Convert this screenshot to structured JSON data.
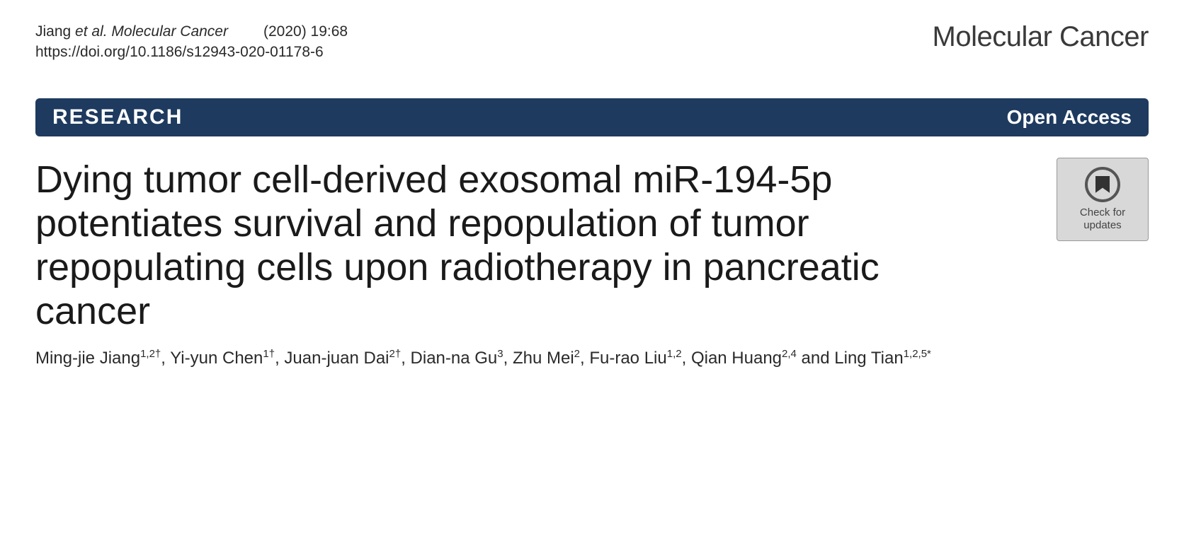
{
  "citation": {
    "authors_short": "Jiang",
    "et_al_text": "et al. Molecular Cancer",
    "year_issue": "(2020) 19:68",
    "doi": "https://doi.org/10.1186/s12943-020-01178-6"
  },
  "journal": {
    "name": "Molecular Cancer"
  },
  "banner": {
    "category": "RESEARCH",
    "access": "Open Access"
  },
  "title": "Dying tumor cell-derived exosomal miR-194-5p potentiates survival and repopulation of tumor repopulating cells upon radiotherapy in pancreatic cancer",
  "check_updates": {
    "line1": "Check for",
    "line2": "updates"
  },
  "authors": [
    {
      "name": "Ming-jie Jiang",
      "affil": "1,2†"
    },
    {
      "name": "Yi-yun Chen",
      "affil": "1†"
    },
    {
      "name": "Juan-juan Dai",
      "affil": "2†"
    },
    {
      "name": "Dian-na Gu",
      "affil": "3"
    },
    {
      "name": "Zhu Mei",
      "affil": "2"
    },
    {
      "name": "Fu-rao Liu",
      "affil": "1,2"
    },
    {
      "name": "Qian Huang",
      "affil": "2,4"
    },
    {
      "name": "Ling Tian",
      "affil": "1,2,5*"
    }
  ],
  "colors": {
    "banner_bg": "#1e3a5f",
    "banner_text": "#ffffff",
    "text_primary": "#1a1a1a",
    "text_secondary": "#2a2a2a",
    "badge_bg": "#d8d8d8",
    "badge_border": "#999999"
  },
  "typography": {
    "citation_fontsize": 21,
    "journal_fontsize": 40,
    "banner_left_fontsize": 30,
    "banner_right_fontsize": 28,
    "title_fontsize": 54,
    "authors_fontsize": 24,
    "affil_fontsize": 15
  }
}
